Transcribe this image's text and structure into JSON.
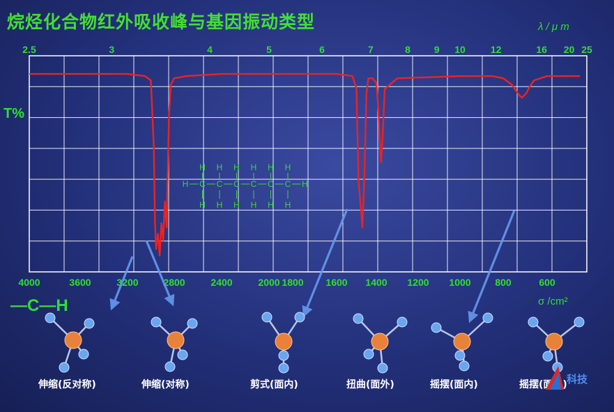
{
  "title": "烷烃化合物红外吸收峰与基因振动类型",
  "wavelength_unit": "λ / μ m",
  "transmittance_label": "T%",
  "wavenumber_unit": "σ /cm²",
  "group_label": "—C—H",
  "structure": {
    "h": "H",
    "c": "C",
    "dash": "—"
  },
  "vibration_modes": [
    "伸缩(反对称)",
    "伸缩(对称)",
    "剪式(面内)",
    "扭曲(面外)",
    "摇摆(面内)",
    "摇摆(面外)"
  ],
  "logo_text": "科技",
  "colors": {
    "spectrum": "#ee2222",
    "grid": "#ffffff",
    "axis_text": "#33dd33",
    "arrow": "#6699ee",
    "carbon_atom": "#e8823a",
    "hydrogen_atom": "#6aa6ee"
  },
  "chart_data": {
    "type": "line",
    "x_bottom": {
      "label": "σ /cm²",
      "ticks": [
        4000,
        3600,
        3200,
        2800,
        2400,
        2000,
        1800,
        1600,
        1400,
        1200,
        1000,
        800,
        600
      ],
      "range": [
        4000,
        450
      ]
    },
    "x_top": {
      "label": "λ / μ m",
      "ticks": [
        2.5,
        3,
        4,
        5,
        6,
        7,
        8,
        9,
        10,
        12,
        16,
        20,
        25
      ]
    },
    "ylabel": "T%",
    "grid": true,
    "series": [
      {
        "x": [
          4000,
          3600,
          3200,
          3050,
          3000,
          2975,
          2965,
          2955,
          2940,
          2925,
          2910,
          2895,
          2880,
          2865,
          2855,
          2845,
          2830,
          2800,
          2700,
          2400,
          2000,
          1700,
          1600,
          1520,
          1500,
          1490,
          1470,
          1460,
          1450,
          1440,
          1430,
          1420,
          1410,
          1400,
          1390,
          1385,
          1378,
          1370,
          1360,
          1300,
          1000,
          850,
          800,
          760,
          740,
          725,
          715,
          705,
          695,
          680,
          660,
          600,
          450
        ],
        "y": [
          89,
          89,
          89,
          88,
          86,
          55,
          20,
          8,
          15,
          5,
          20,
          12,
          30,
          18,
          45,
          70,
          84,
          87,
          88,
          89,
          89,
          89,
          89,
          88,
          82,
          40,
          18,
          42,
          80,
          87,
          87,
          87,
          86,
          85,
          72,
          60,
          48,
          60,
          82,
          87,
          88,
          88,
          87,
          84,
          81,
          79,
          78,
          79,
          80,
          83,
          86,
          88,
          88
        ]
      }
    ]
  }
}
